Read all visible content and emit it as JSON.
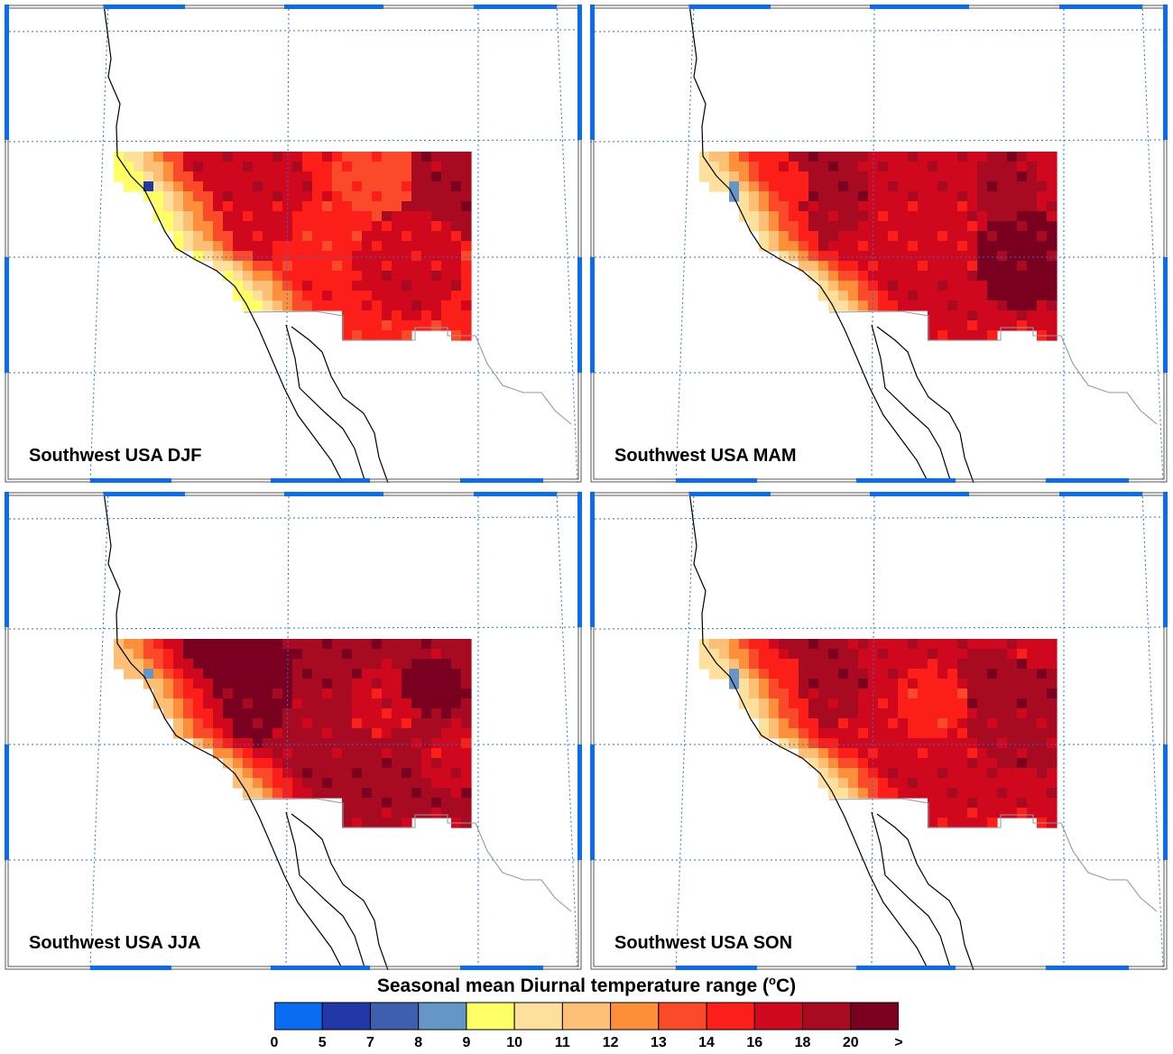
{
  "panels": [
    {
      "label": "Southwest USA DJF",
      "season": "DJF"
    },
    {
      "label": "Southwest USA MAM",
      "season": "MAM"
    },
    {
      "label": "Southwest USA JJA",
      "season": "JJA"
    },
    {
      "label": "Southwest USA SON",
      "season": "SON"
    }
  ],
  "legend": {
    "title_prefix": "Seasonal mean Diurnal temperature range (",
    "title_sup": "o",
    "title_suffix": "C)",
    "tick_labels": [
      "0",
      "5",
      "7",
      "8",
      "9",
      "10",
      "11",
      "12",
      "13",
      "14",
      "16",
      "18",
      "20",
      ">"
    ],
    "colors": [
      "#0a6cf0",
      "#2237a8",
      "#3e5fae",
      "#6596c8",
      "#ffff66",
      "#fde09b",
      "#fdbe76",
      "#fd8f3a",
      "#fa4a2a",
      "#fc1e18",
      "#d0081e",
      "#a80a22",
      "#7a0020"
    ]
  },
  "colors": {
    "grid": "#2a6fe0",
    "frame_accent": "#0a6cf0",
    "coastline": "#000000",
    "border": "#9a9a9a"
  }
}
